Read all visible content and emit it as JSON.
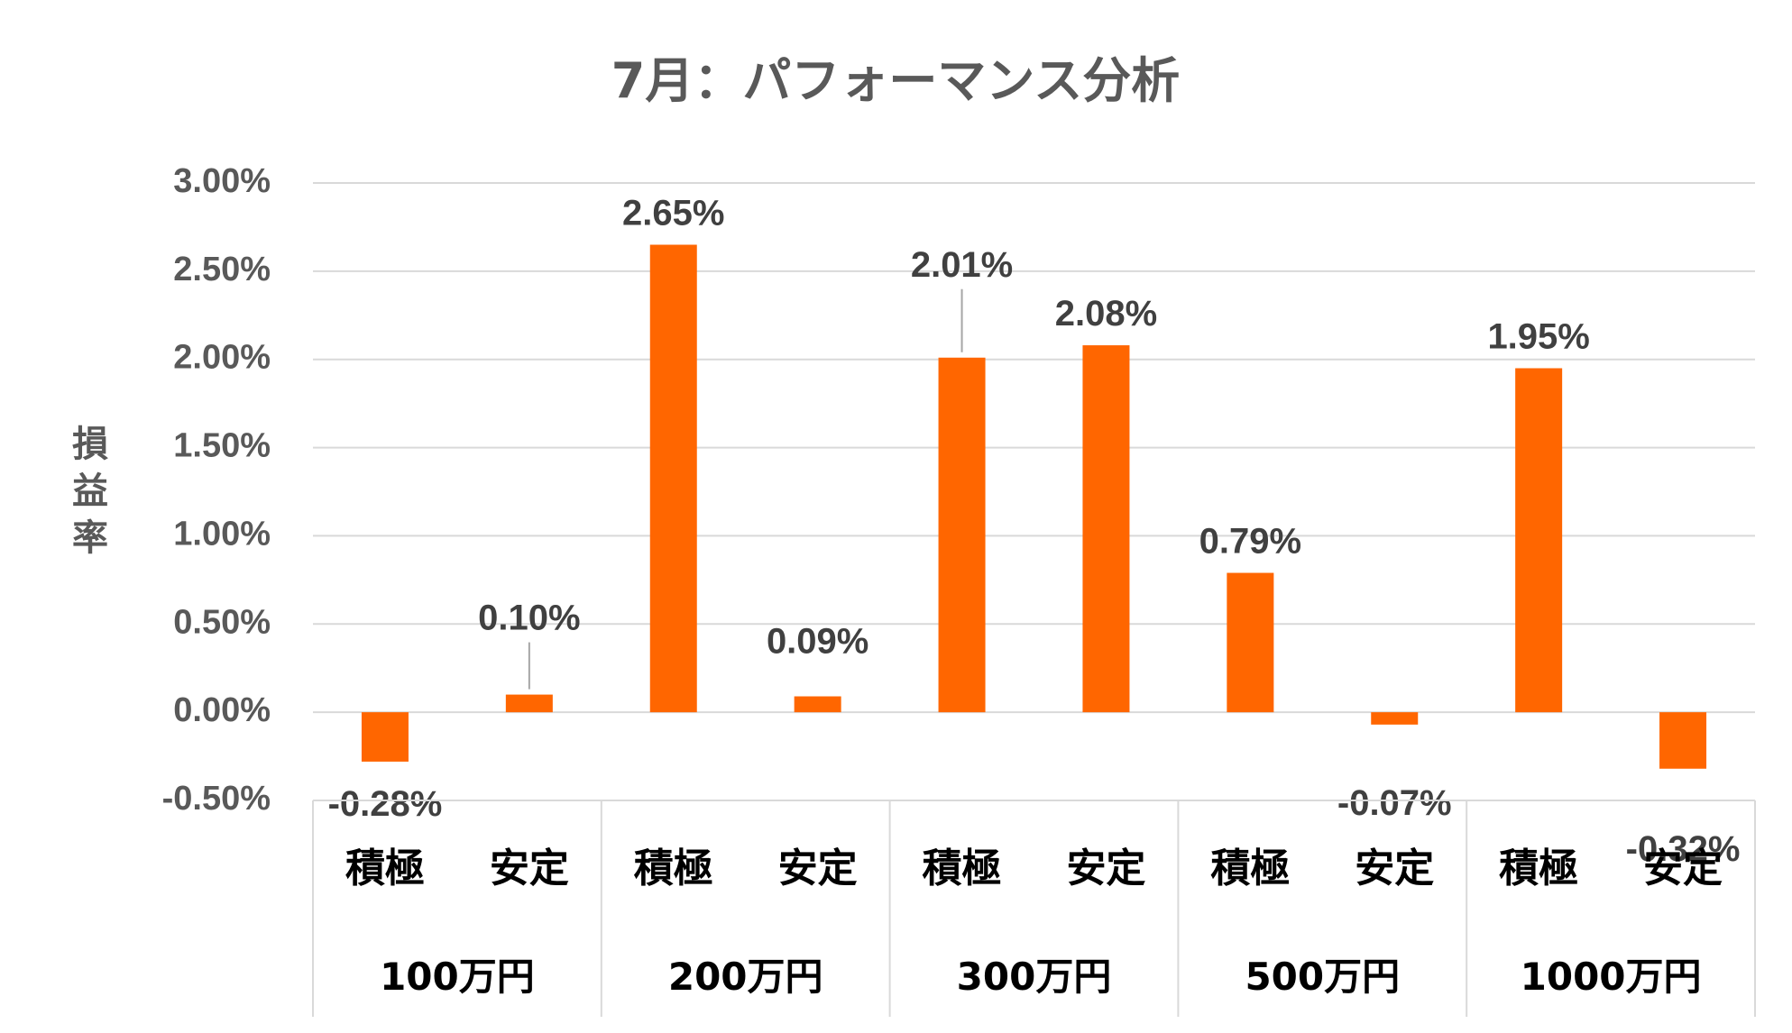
{
  "chart_data": {
    "type": "bar",
    "title": "7月：パフォーマンス分析",
    "ylabel": "損益率",
    "xlabel": "",
    "ylim": [
      -0.5,
      3.0
    ],
    "yticks": [
      -0.5,
      0.0,
      0.5,
      1.0,
      1.5,
      2.0,
      2.5,
      3.0
    ],
    "ytick_labels": [
      "-0.50%",
      "0.00%",
      "0.50%",
      "1.00%",
      "1.50%",
      "2.00%",
      "2.50%",
      "3.00%"
    ],
    "grid": true,
    "bar_color": "#ff6600",
    "groups": [
      "100万円",
      "200万円",
      "300万円",
      "500万円",
      "1000万円"
    ],
    "categories": [
      "積極",
      "安定",
      "積極",
      "安定",
      "積極",
      "安定",
      "積極",
      "安定",
      "積極",
      "安定"
    ],
    "values": [
      -0.28,
      0.1,
      2.65,
      0.09,
      2.01,
      2.08,
      0.79,
      -0.07,
      1.95,
      -0.32
    ],
    "value_labels": [
      "-0.28%",
      "0.10%",
      "2.65%",
      "0.09%",
      "2.01%",
      "2.08%",
      "0.79%",
      "-0.07%",
      "1.95%",
      "-0.32%"
    ]
  }
}
